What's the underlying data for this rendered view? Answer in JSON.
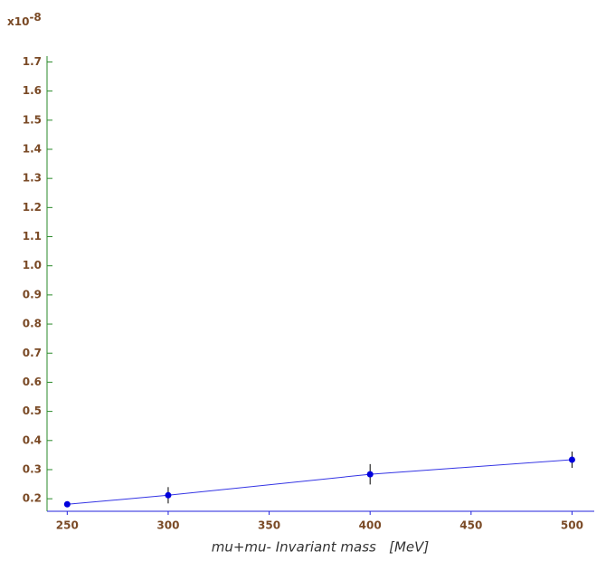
{
  "chart_data": {
    "type": "line",
    "scale_label": {
      "base": "x10",
      "exponent": "-8"
    },
    "x_label": "mu+mu- Invariant mass   [MeV]",
    "x": [
      250,
      300,
      400,
      500
    ],
    "series": [
      {
        "color": "#0000dd",
        "values": [
          0.181,
          0.212,
          0.284,
          0.334
        ],
        "errors": [
          0.008,
          0.028,
          0.035,
          0.028
        ]
      }
    ],
    "xlim": [
      240,
      511
    ],
    "xticks": [
      250,
      300,
      350,
      400,
      450,
      500
    ],
    "ylim": [
      0.157,
      1.72
    ],
    "yticks": [
      0.2,
      0.3,
      0.4,
      0.5,
      0.6,
      0.7,
      0.8,
      0.9,
      {
        "value": 1,
        "label": "1.0"
      },
      1.1,
      1.2,
      1.3,
      1.4,
      1.5,
      1.6,
      1.7
    ],
    "grid": false
  }
}
